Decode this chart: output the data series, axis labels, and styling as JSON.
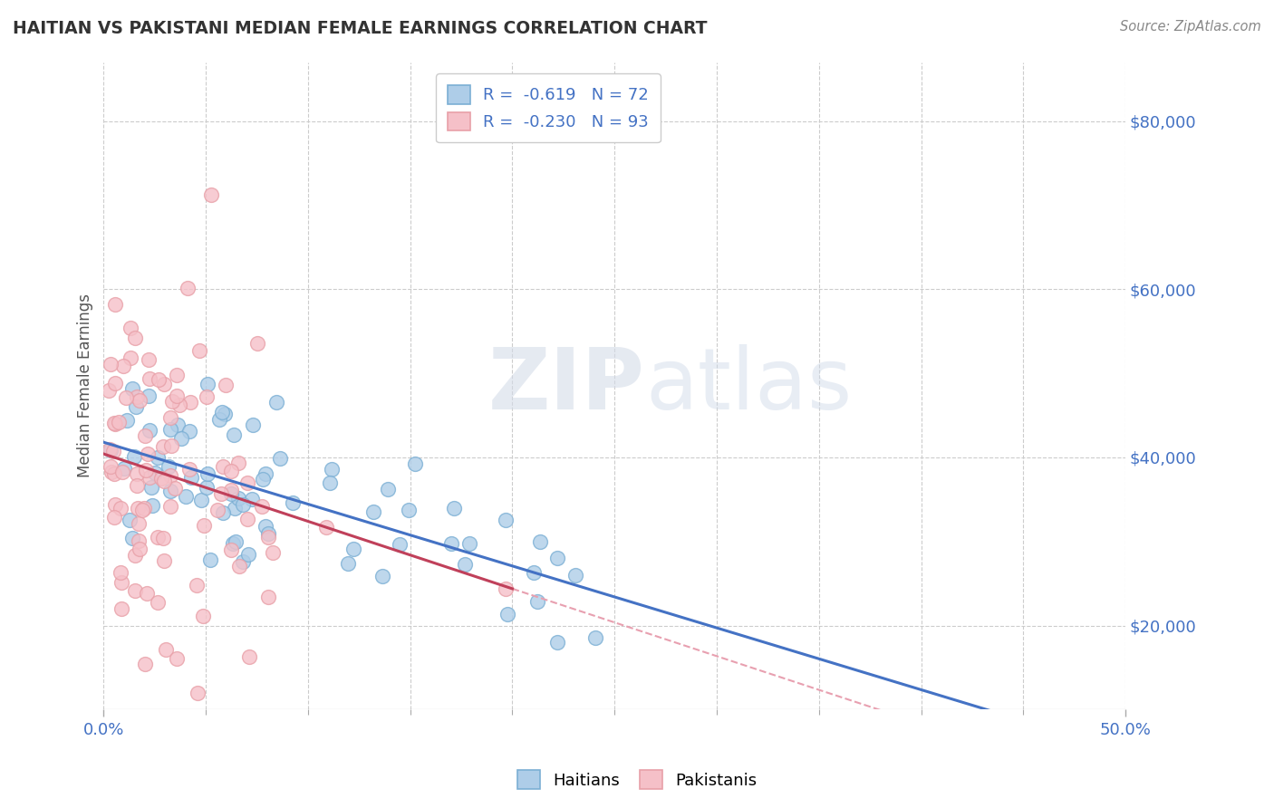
{
  "title": "HAITIAN VS PAKISTANI MEDIAN FEMALE EARNINGS CORRELATION CHART",
  "source": "Source: ZipAtlas.com",
  "ylabel": "Median Female Earnings",
  "xlim": [
    0.0,
    0.5
  ],
  "ylim": [
    10000,
    87000
  ],
  "yticks": [
    20000,
    40000,
    60000,
    80000
  ],
  "ytick_labels": [
    "$20,000",
    "$40,000",
    "$60,000",
    "$80,000"
  ],
  "xtick_labels_shown": [
    "0.0%",
    "50.0%"
  ],
  "xtick_positions_shown": [
    0.0,
    0.5
  ],
  "haitian_color": "#7bafd4",
  "pakistani_color": "#e8a0a8",
  "haitian_fill": "#aecde8",
  "pakistani_fill": "#f5c0c8",
  "legend_label_haitian": "R =  -0.619   N = 72",
  "legend_label_pakistani": "R =  -0.230   N = 93",
  "blue_line_color": "#4472c4",
  "pink_line_color": "#c0405a",
  "pink_dash_color": "#e8a0b0",
  "gray_line_color": "#bbbbbb",
  "background_color": "#ffffff",
  "grid_color": "#cccccc",
  "haitian_R": -0.619,
  "haitian_N": 72,
  "pakistani_R": -0.23,
  "pakistani_N": 93,
  "watermark_zip_color": "#d0d8e8",
  "watermark_atlas_color": "#c8d8e8",
  "title_color": "#333333",
  "source_color": "#888888",
  "ylabel_color": "#555555",
  "axis_label_color": "#4472c4",
  "tick_label_color": "#4472c4"
}
